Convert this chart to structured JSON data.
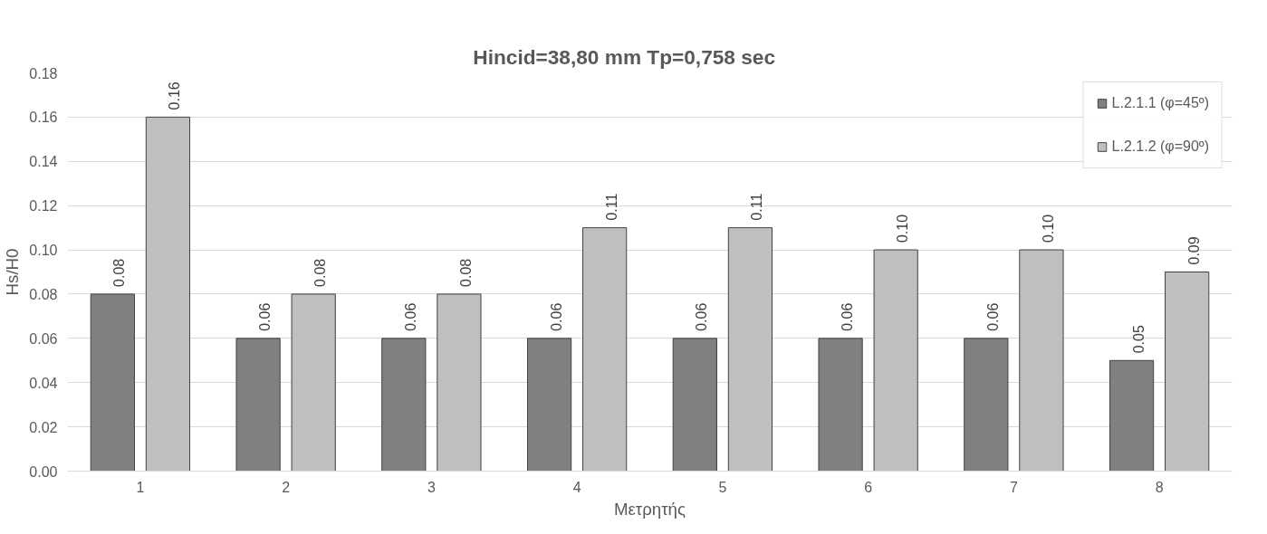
{
  "chart_data": {
    "type": "bar",
    "title": "Hincid=38,80 mm          Tp=0,758 sec",
    "xlabel": "Μετρητής",
    "ylabel": "Hs/H0",
    "categories": [
      "1",
      "2",
      "3",
      "4",
      "5",
      "6",
      "7",
      "8"
    ],
    "series": [
      {
        "name": "L.2.1.1 (φ=45º)",
        "color": "#808080",
        "values": [
          0.08,
          0.06,
          0.06,
          0.06,
          0.06,
          0.06,
          0.06,
          0.05
        ],
        "value_labels": [
          "0.08",
          "0.06",
          "0.06",
          "0.06",
          "0.06",
          "0.06",
          "0.06",
          "0.05"
        ]
      },
      {
        "name": "L.2.1.2 (φ=90º)",
        "color": "#bfbfbf",
        "values": [
          0.16,
          0.08,
          0.08,
          0.11,
          0.11,
          0.1,
          0.1,
          0.09
        ],
        "value_labels": [
          "0.16",
          "0.08",
          "0.08",
          "0.11",
          "0.11",
          "0.10",
          "0.10",
          "0.09"
        ]
      }
    ],
    "ylim": [
      0,
      0.18
    ],
    "yticks": [
      {
        "value": 0,
        "label": "0.00"
      },
      {
        "value": 0.02,
        "label": "0.02"
      },
      {
        "value": 0.04,
        "label": "0.04"
      },
      {
        "value": 0.06,
        "label": "0.06"
      },
      {
        "value": 0.08,
        "label": "0.08"
      },
      {
        "value": 0.1,
        "label": "0.10"
      },
      {
        "value": 0.12,
        "label": "0.12"
      },
      {
        "value": 0.14,
        "label": "0.14"
      },
      {
        "value": 0.16,
        "label": "0.16"
      },
      {
        "value": 0.18,
        "label": "0.18"
      }
    ],
    "grid": "y",
    "legend": "top right"
  }
}
